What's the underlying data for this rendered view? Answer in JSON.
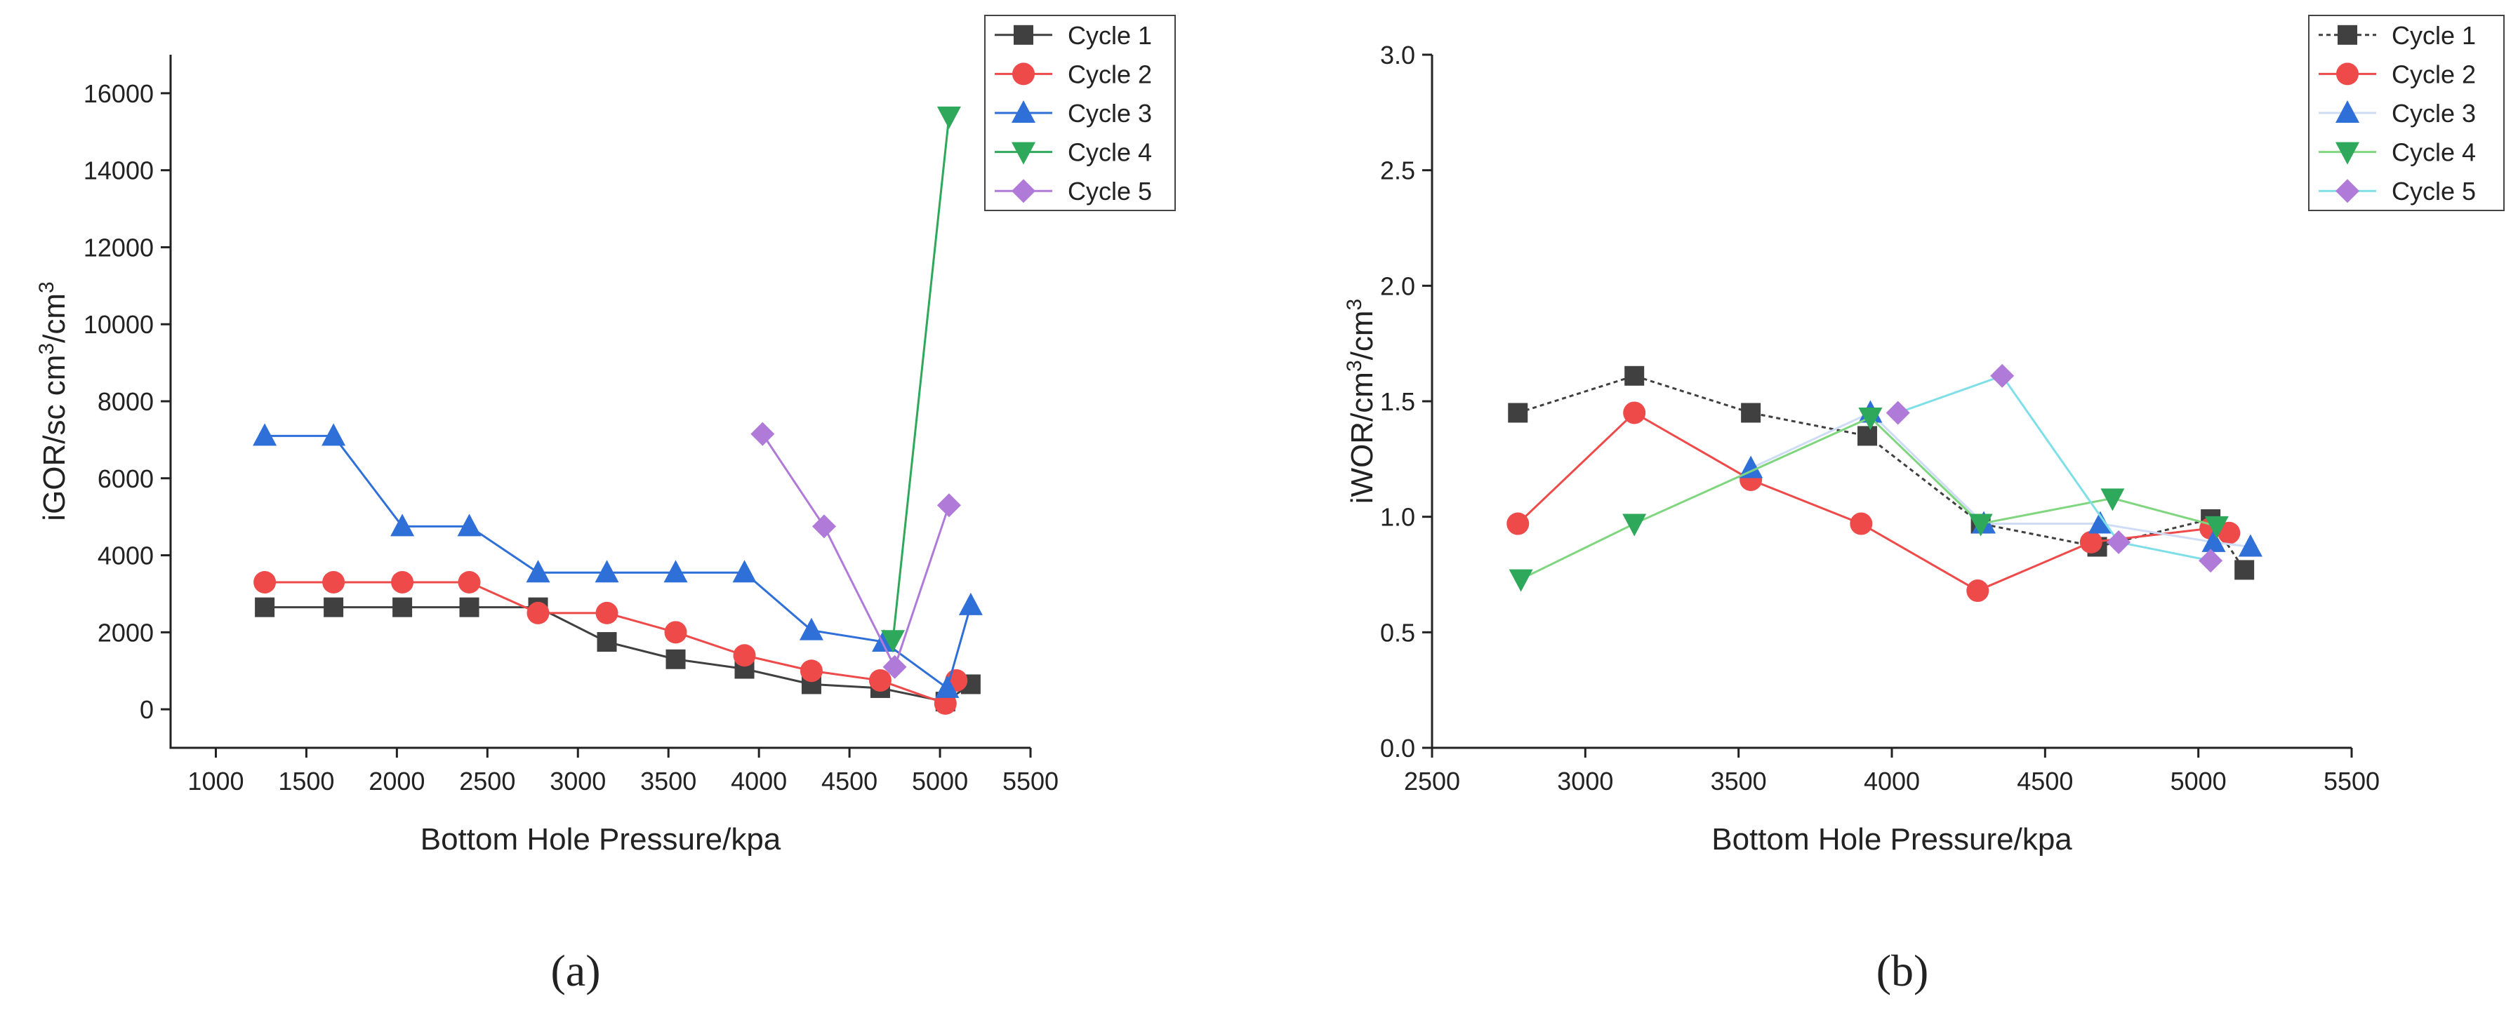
{
  "chart_data": [
    {
      "panel_label": "(a)",
      "type": "line",
      "xlabel": "Bottom Hole Pressure/kpa",
      "ylabel": "iGOR/sc cm³/cm³",
      "ylabel_base": "iGOR/sc cm",
      "ylabel_mid": "/cm",
      "ylabel_sup": "3",
      "xlim": [
        750,
        5500
      ],
      "ylim": [
        -1000,
        17000
      ],
      "xticks": [
        1000,
        1500,
        2000,
        2500,
        3000,
        3500,
        4000,
        4500,
        5000,
        5500
      ],
      "yticks": [
        0,
        2000,
        4000,
        6000,
        8000,
        10000,
        12000,
        14000,
        16000
      ],
      "grid": false,
      "legend_position": "top-right",
      "series": [
        {
          "name": "Cycle 1",
          "color": "#404040",
          "marker": "square",
          "x": [
            1270,
            1650,
            2030,
            2400,
            2780,
            3160,
            3540,
            3920,
            4290,
            4670,
            5030,
            5170
          ],
          "y": [
            2650,
            2650,
            2650,
            2650,
            2650,
            1750,
            1300,
            1050,
            650,
            550,
            200,
            650
          ]
        },
        {
          "name": "Cycle 2",
          "color": "#ee4a4a",
          "marker": "circle",
          "x": [
            1270,
            1650,
            2030,
            2400,
            2780,
            3160,
            3540,
            3920,
            4290,
            4670,
            5030,
            5090
          ],
          "y": [
            3300,
            3300,
            3300,
            3300,
            2500,
            2500,
            2000,
            1400,
            1000,
            750,
            150,
            750
          ]
        },
        {
          "name": "Cycle 3",
          "color": "#2f6fd8",
          "marker": "triangle-up",
          "x": [
            1270,
            1650,
            2030,
            2400,
            2780,
            3160,
            3540,
            3920,
            4290,
            4690,
            5040,
            5170
          ],
          "y": [
            7100,
            7100,
            4750,
            4750,
            3550,
            3550,
            3550,
            3550,
            2050,
            1750,
            550,
            2700
          ]
        },
        {
          "name": "Cycle 4",
          "color": "#2ea85a",
          "marker": "triangle-down",
          "x": [
            4740,
            5050
          ],
          "y": [
            1800,
            15400
          ]
        },
        {
          "name": "Cycle 5",
          "color": "#b07ad8",
          "marker": "diamond",
          "x": [
            4020,
            4360,
            4750,
            5050
          ],
          "y": [
            7150,
            4750,
            1100,
            5300
          ]
        }
      ]
    },
    {
      "panel_label": "(b)",
      "type": "line",
      "xlabel": "Bottom Hole Pressure/kpa",
      "ylabel": "iWOR/cm³/cm³",
      "ylabel_base": "iWOR/cm",
      "ylabel_mid": "/cm",
      "ylabel_sup": "3",
      "xlim": [
        2500,
        5500
      ],
      "ylim": [
        0.0,
        3.0
      ],
      "xticks": [
        2500,
        3000,
        3500,
        4000,
        4500,
        5000,
        5500
      ],
      "yticks": [
        "0.0",
        "0.5",
        "1.0",
        "1.5",
        "2.0",
        "2.5",
        "3.0"
      ],
      "grid": false,
      "legend_position": "top-right",
      "series": [
        {
          "name": "Cycle 1",
          "color": "#404040",
          "marker": "square",
          "dashed": true,
          "x": [
            2780,
            3160,
            3540,
            3920,
            4290,
            4670,
            5040,
            5150
          ],
          "y": [
            1.45,
            1.61,
            1.45,
            1.35,
            0.97,
            0.87,
            0.99,
            0.77
          ]
        },
        {
          "name": "Cycle 2",
          "color": "#ee4a4a",
          "marker": "circle",
          "x": [
            2780,
            3160,
            3540,
            3900,
            4280,
            4650,
            5040,
            5100
          ],
          "y": [
            0.97,
            1.45,
            1.16,
            0.97,
            0.68,
            0.89,
            0.95,
            0.93
          ]
        },
        {
          "name": "Cycle 3",
          "color": "#2f6fd8",
          "marker": "triangle-up",
          "line_color": "#cfdcf5",
          "x": [
            3540,
            3930,
            4300,
            4680,
            5050,
            5170
          ],
          "y": [
            1.21,
            1.45,
            0.97,
            0.97,
            0.89,
            0.87
          ]
        },
        {
          "name": "Cycle 4",
          "color": "#2ea85a",
          "marker": "triangle-down",
          "line_color": "#7fd67f",
          "x": [
            2790,
            3160,
            3930,
            4290,
            4720,
            5060
          ],
          "y": [
            0.73,
            0.97,
            1.43,
            0.97,
            1.08,
            0.96
          ]
        },
        {
          "name": "Cycle 5",
          "color": "#b07ad8",
          "marker": "diamond",
          "line_color": "#7fdfe8",
          "x": [
            4020,
            4360,
            4740,
            5040
          ],
          "y": [
            1.45,
            1.61,
            0.89,
            0.81
          ]
        }
      ]
    }
  ]
}
